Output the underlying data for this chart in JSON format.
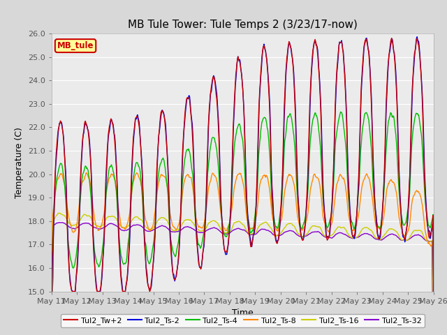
{
  "title": "MB Tule Tower: Tule Temps 2 (3/23/17-now)",
  "xlabel": "Time",
  "ylabel": "Temperature (C)",
  "ylim": [
    15.0,
    26.0
  ],
  "yticks": [
    15.0,
    16.0,
    17.0,
    18.0,
    19.0,
    20.0,
    21.0,
    22.0,
    23.0,
    24.0,
    25.0,
    26.0
  ],
  "xtick_labels": [
    "May 11",
    "May 12",
    "May 13",
    "May 14",
    "May 15",
    "May 16",
    "May 17",
    "May 18",
    "May 19",
    "May 20",
    "May 21",
    "May 22",
    "May 23",
    "May 24",
    "May 25",
    "May 26"
  ],
  "series_names": [
    "Tul2_Tw+2",
    "Tul2_Ts-2",
    "Tul2_Ts-4",
    "Tul2_Ts-8",
    "Tul2_Ts-16",
    "Tul2_Ts-32"
  ],
  "series_colors": [
    "#cc0000",
    "#0000dd",
    "#00bb00",
    "#ff8800",
    "#cccc00",
    "#8800cc"
  ],
  "bg_color": "#d8d8d8",
  "plot_bg": "#ebebeb",
  "legend_label": "MB_tule",
  "legend_bg": "#ffff99",
  "legend_border": "#cc0000",
  "title_fontsize": 11,
  "axis_fontsize": 9,
  "tick_fontsize": 8,
  "lw": 1.0
}
